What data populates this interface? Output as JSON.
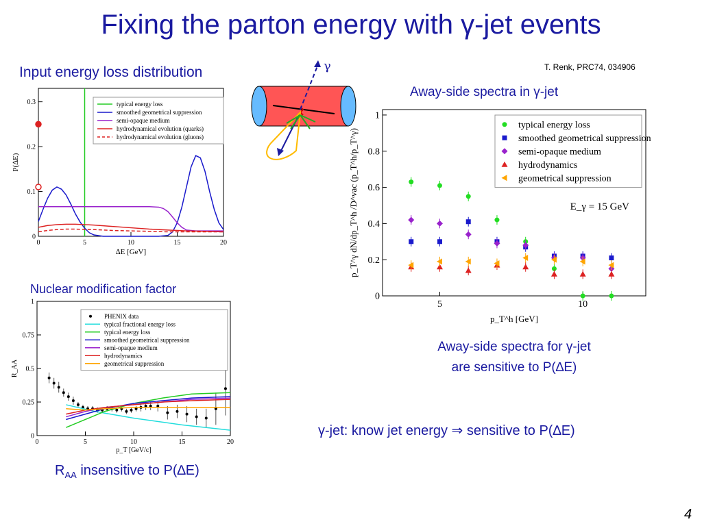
{
  "slide": {
    "title": "Fixing the parton energy with γ-jet events",
    "reference": "T. Renk, PRC74, 034906",
    "label_input": "Input energy loss distribution",
    "label_nuclear": "Nuclear modification factor",
    "label_away": "Away-side spectra in γ-jet",
    "label_sensitive_1": "Away-side spectra for γ-jet",
    "label_sensitive_2": "are sensitive to P(∆E)",
    "label_jet": "γ-jet: know jet energy ⇒ sensitive to P(∆E)",
    "label_raa_R": "R",
    "label_raa_sub": "AA",
    "label_raa_rest": " insensitive to P(∆E)",
    "page_number": "4",
    "diagram_gamma": "γ",
    "title_color": "#1a1aa0"
  },
  "chart_data": [
    {
      "type": "line",
      "xlabel": "∆E [GeV]",
      "ylabel": "P(∆E)",
      "xlim": [
        0,
        20
      ],
      "ylim": [
        0,
        0.33
      ],
      "xticks": [
        "0",
        "5",
        "10",
        "15",
        "20"
      ],
      "yticks": [
        "0",
        "0.1",
        "0.2",
        "0.3"
      ],
      "legend_position": "top-right",
      "series": [
        {
          "name": "typical energy loss",
          "color": "#22cc22",
          "style": "solid",
          "kind": "vertical",
          "x": 5
        },
        {
          "name": "smoothed geometrical suppression",
          "color": "#1a1acc",
          "style": "solid",
          "x": [
            0,
            0.5,
            1,
            1.5,
            2,
            2.5,
            3,
            3.5,
            4,
            4.5,
            5,
            5.5,
            6,
            7,
            8,
            9,
            10,
            11,
            12,
            13,
            14,
            14.5,
            15,
            15.5,
            16,
            16.5,
            17,
            17.5,
            18,
            18.5,
            19,
            19.5,
            20
          ],
          "y": [
            0.033,
            0.06,
            0.085,
            0.103,
            0.11,
            0.105,
            0.092,
            0.072,
            0.05,
            0.032,
            0.018,
            0.008,
            0.003,
            0,
            0,
            0,
            0,
            0,
            0,
            0,
            0.002,
            0.01,
            0.03,
            0.065,
            0.11,
            0.155,
            0.18,
            0.175,
            0.145,
            0.1,
            0.06,
            0.03,
            0.015
          ]
        },
        {
          "name": "semi-opaque medium",
          "color": "#9922cc",
          "style": "solid",
          "x": [
            0,
            1,
            2,
            4,
            6,
            8,
            10,
            12,
            13,
            13.5,
            14,
            14.5,
            15,
            15.5,
            16,
            17,
            18,
            19,
            20
          ],
          "y": [
            0.066,
            0.066,
            0.066,
            0.066,
            0.066,
            0.066,
            0.066,
            0.066,
            0.065,
            0.062,
            0.055,
            0.043,
            0.03,
            0.02,
            0.014,
            0.012,
            0.012,
            0.012,
            0.012
          ]
        },
        {
          "name": "hydrodynamical evolution (quarks)",
          "color": "#dd2222",
          "style": "solid",
          "x": [
            0,
            1,
            2,
            3,
            4,
            6,
            8,
            10,
            12,
            14,
            16,
            18,
            20
          ],
          "y": [
            0.02,
            0.024,
            0.026,
            0.027,
            0.027,
            0.025,
            0.022,
            0.019,
            0.016,
            0.014,
            0.012,
            0.011,
            0.01
          ]
        },
        {
          "name": "hydrodynamical evolution (gluons)",
          "color": "#dd2222",
          "style": "dashed",
          "x": [
            0,
            1,
            2,
            3,
            4,
            6,
            8,
            10,
            12,
            14,
            16,
            18,
            20
          ],
          "y": [
            0.01,
            0.013,
            0.015,
            0.016,
            0.016,
            0.015,
            0.013,
            0.012,
            0.011,
            0.01,
            0.01,
            0.01,
            0.01
          ]
        }
      ],
      "points": [
        {
          "x": 0,
          "y": 0.25,
          "color": "#dd2222",
          "filled": true
        },
        {
          "x": 0,
          "y": 0.11,
          "color": "#dd2222",
          "filled": false
        }
      ]
    },
    {
      "type": "line",
      "xlabel": "p_T [GeV/c]",
      "ylabel": "R_AA",
      "xlim": [
        0,
        20
      ],
      "ylim": [
        0,
        1
      ],
      "xticks": [
        "0",
        "5",
        "10",
        "15",
        "20"
      ],
      "yticks": [
        "0",
        "0.25",
        "0.5",
        "0.75",
        "1"
      ],
      "legend_position": "top-right",
      "series": [
        {
          "name": "PHENIX data",
          "color": "#000000",
          "kind": "data",
          "x": [
            1.25,
            1.75,
            2.25,
            2.75,
            3.25,
            3.75,
            4.25,
            4.75,
            5.25,
            5.75,
            6.25,
            6.75,
            7.25,
            7.75,
            8.25,
            8.75,
            9.25,
            9.75,
            10.25,
            10.75,
            11.25,
            11.75,
            12.5,
            13.5,
            14.5,
            15.5,
            16.5,
            17.5,
            18.5,
            19.5
          ],
          "y": [
            0.43,
            0.39,
            0.36,
            0.32,
            0.29,
            0.26,
            0.23,
            0.21,
            0.2,
            0.2,
            0.19,
            0.19,
            0.2,
            0.2,
            0.19,
            0.2,
            0.18,
            0.19,
            0.2,
            0.21,
            0.22,
            0.22,
            0.22,
            0.17,
            0.18,
            0.16,
            0.14,
            0.13,
            0.2,
            0.35
          ],
          "err": [
            0.04,
            0.04,
            0.04,
            0.03,
            0.03,
            0.03,
            0.02,
            0.02,
            0.02,
            0.02,
            0.02,
            0.02,
            0.02,
            0.02,
            0.02,
            0.02,
            0.02,
            0.02,
            0.02,
            0.03,
            0.03,
            0.03,
            0.04,
            0.05,
            0.05,
            0.06,
            0.06,
            0.07,
            0.12,
            0.2
          ]
        },
        {
          "name": "typical fractional energy loss",
          "color": "#22dddd",
          "x": [
            3,
            6,
            10,
            15,
            20
          ],
          "y": [
            0.23,
            0.18,
            0.13,
            0.08,
            0.04
          ]
        },
        {
          "name": "typical energy loss",
          "color": "#22cc22",
          "x": [
            3,
            5,
            7,
            10,
            13,
            16,
            20
          ],
          "y": [
            0.06,
            0.12,
            0.18,
            0.24,
            0.28,
            0.31,
            0.32
          ]
        },
        {
          "name": "smoothed geometrical suppression",
          "color": "#1a1acc",
          "x": [
            3,
            5,
            7,
            10,
            13,
            16,
            20
          ],
          "y": [
            0.12,
            0.16,
            0.2,
            0.24,
            0.26,
            0.28,
            0.29
          ]
        },
        {
          "name": "semi-opaque medium",
          "color": "#9922cc",
          "x": [
            3,
            5,
            7,
            10,
            13,
            16,
            20
          ],
          "y": [
            0.14,
            0.18,
            0.21,
            0.23,
            0.25,
            0.27,
            0.28
          ]
        },
        {
          "name": "hydrodynamics",
          "color": "#dd2222",
          "x": [
            3,
            5,
            7,
            10,
            13,
            16,
            20
          ],
          "y": [
            0.16,
            0.19,
            0.21,
            0.23,
            0.25,
            0.26,
            0.27
          ]
        },
        {
          "name": "geometrical suppression",
          "color": "#ffa500",
          "x": [
            3,
            5,
            7,
            10,
            13,
            16,
            20
          ],
          "y": [
            0.2,
            0.19,
            0.2,
            0.21,
            0.21,
            0.21,
            0.21
          ]
        }
      ]
    },
    {
      "type": "scatter",
      "xlabel": "p_T^h [GeV]",
      "ylabel": "p_T^γ dN/dp_T^h /D^vac (p_T^h/p_T^γ)",
      "xlim": [
        3,
        12.2
      ],
      "ylim": [
        0,
        1.03
      ],
      "xticks": [
        "5",
        "10"
      ],
      "yticks": [
        "0",
        "0.2",
        "0.4",
        "0.6",
        "0.8",
        "1"
      ],
      "legend_position": "top-right",
      "annotation": "E_γ = 15 GeV",
      "series": [
        {
          "name": "typical energy loss",
          "color": "#22dd22",
          "marker": "circle",
          "x": [
            4,
            5,
            6,
            7,
            8,
            9,
            10,
            11
          ],
          "y": [
            0.63,
            0.61,
            0.55,
            0.42,
            0.3,
            0.15,
            0,
            0
          ]
        },
        {
          "name": "smoothed geometrical suppression",
          "color": "#1a1acc",
          "marker": "square",
          "x": [
            4,
            5,
            6,
            7,
            8,
            9,
            10,
            11
          ],
          "y": [
            0.3,
            0.3,
            0.41,
            0.3,
            0.27,
            0.22,
            0.22,
            0.21
          ]
        },
        {
          "name": "semi-opaque medium",
          "color": "#9922cc",
          "marker": "diamond",
          "x": [
            4,
            5,
            6,
            7,
            8,
            9,
            10,
            11
          ],
          "y": [
            0.42,
            0.4,
            0.34,
            0.29,
            0.28,
            0.21,
            0.21,
            0.15
          ]
        },
        {
          "name": "hydrodynamics",
          "color": "#dd2222",
          "marker": "triangle-up",
          "x": [
            4,
            5,
            6,
            7,
            8,
            9,
            10,
            11
          ],
          "y": [
            0.16,
            0.16,
            0.14,
            0.17,
            0.16,
            0.12,
            0.12,
            0.12
          ]
        },
        {
          "name": "geometrical suppression",
          "color": "#ffa500",
          "marker": "triangle-left",
          "x": [
            4,
            5,
            6,
            7,
            8,
            9,
            10,
            11
          ],
          "y": [
            0.17,
            0.19,
            0.19,
            0.18,
            0.21,
            0.2,
            0.19,
            0.17
          ]
        }
      ]
    }
  ]
}
